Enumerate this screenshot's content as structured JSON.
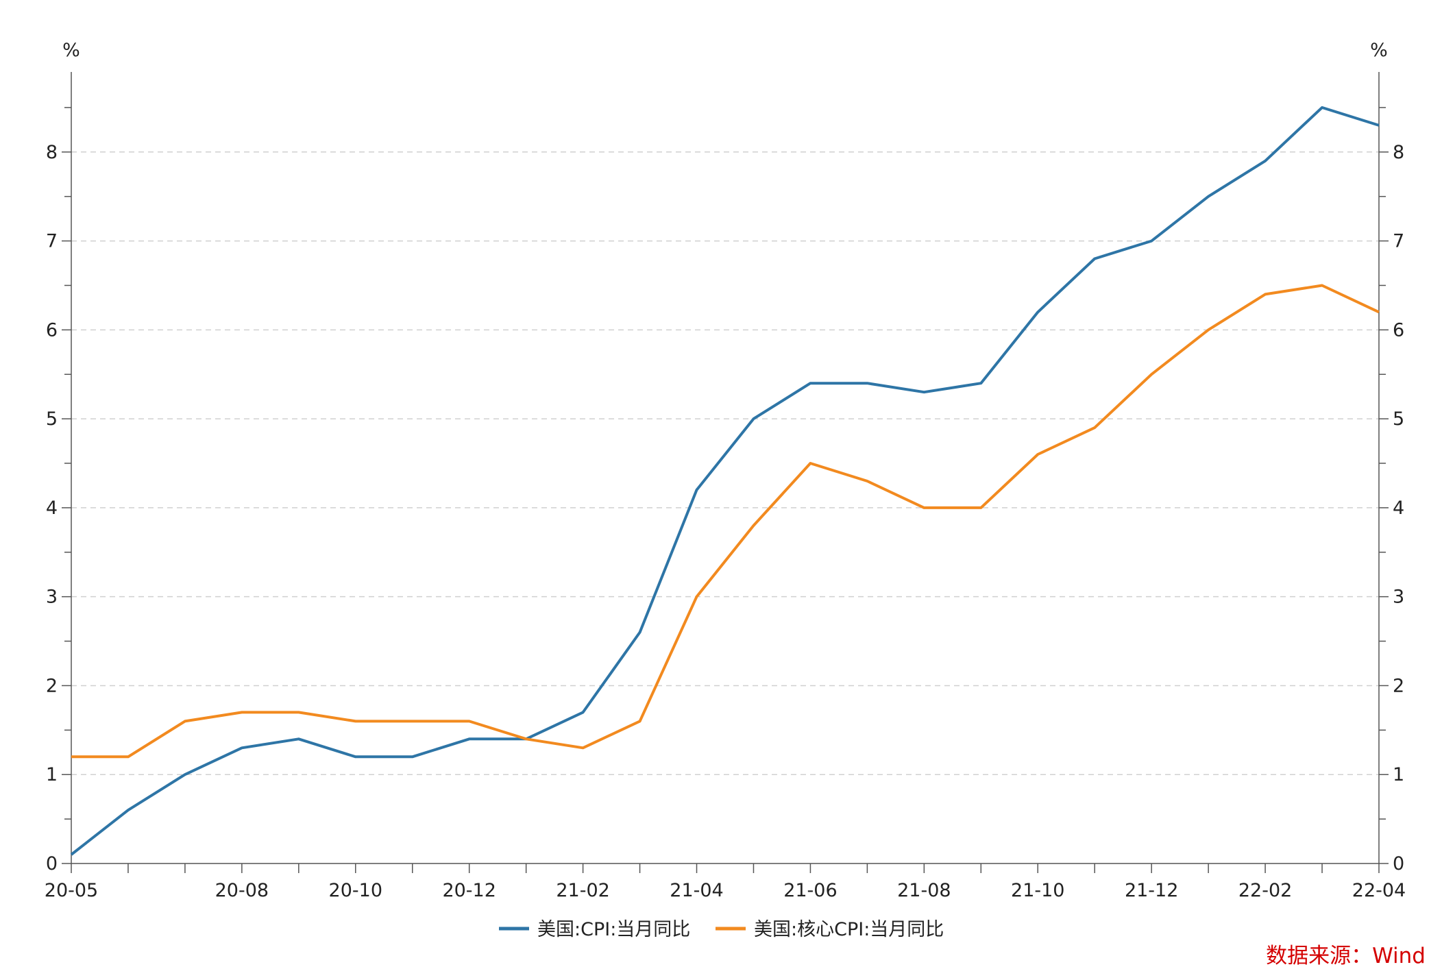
{
  "chart_data": {
    "type": "line",
    "x": [
      "20-05",
      "20-06",
      "20-07",
      "20-08",
      "20-09",
      "20-10",
      "20-11",
      "20-12",
      "21-01",
      "21-02",
      "21-03",
      "21-04",
      "21-05",
      "21-06",
      "21-07",
      "21-08",
      "21-09",
      "21-10",
      "21-11",
      "21-12",
      "22-01",
      "22-02",
      "22-03",
      "22-04"
    ],
    "x_tick_labels": [
      "20-05",
      "20-08",
      "20-10",
      "20-12",
      "21-02",
      "21-04",
      "21-06",
      "21-08",
      "21-10",
      "21-12",
      "22-02",
      "22-04"
    ],
    "series": [
      {
        "name": "美国:CPI:当月同比",
        "color": "#2e75a6",
        "values": [
          0.1,
          0.6,
          1.0,
          1.3,
          1.4,
          1.2,
          1.2,
          1.4,
          1.4,
          1.7,
          2.6,
          4.2,
          5.0,
          5.4,
          5.4,
          5.3,
          5.4,
          6.2,
          6.8,
          7.0,
          7.5,
          7.9,
          8.5,
          8.3
        ]
      },
      {
        "name": "美国:核心CPI:当月同比",
        "color": "#f28a1f",
        "values": [
          1.2,
          1.2,
          1.6,
          1.7,
          1.7,
          1.6,
          1.6,
          1.6,
          1.4,
          1.3,
          1.6,
          3.0,
          3.8,
          4.5,
          4.3,
          4.0,
          4.0,
          4.6,
          4.9,
          5.5,
          6.0,
          6.4,
          6.5,
          6.2
        ]
      }
    ],
    "y_left_unit": "%",
    "y_right_unit": "%",
    "ylim": [
      0,
      8.9
    ],
    "y_ticks": [
      0,
      1,
      2,
      3,
      4,
      5,
      6,
      7,
      8
    ],
    "grid": true,
    "legend": "bottom-center",
    "source": "数据来源：Wind"
  }
}
